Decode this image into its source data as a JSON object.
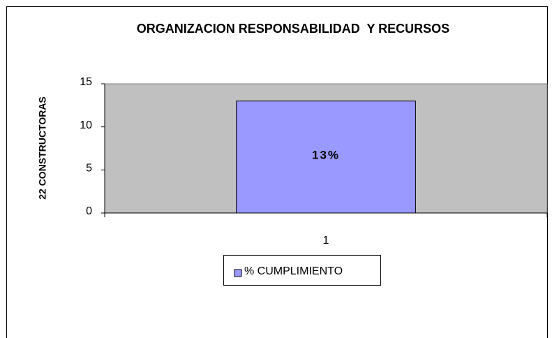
{
  "chart_data": {
    "type": "bar",
    "title": "ORGANIZACION RESPONSABILIDAD  Y RECURSOS",
    "y_label": "22 CONSTRUCTORAS",
    "categories": [
      "1"
    ],
    "series": [
      {
        "name": "% CUMPLIMIENTO",
        "color": "#9999ff",
        "values": [
          13
        ],
        "value_labels": [
          "13%"
        ]
      }
    ],
    "ylim": [
      0,
      15
    ],
    "yticks": [
      0,
      5,
      10,
      15
    ],
    "plot_background": "#c0c0c0",
    "legend": "bottom"
  }
}
